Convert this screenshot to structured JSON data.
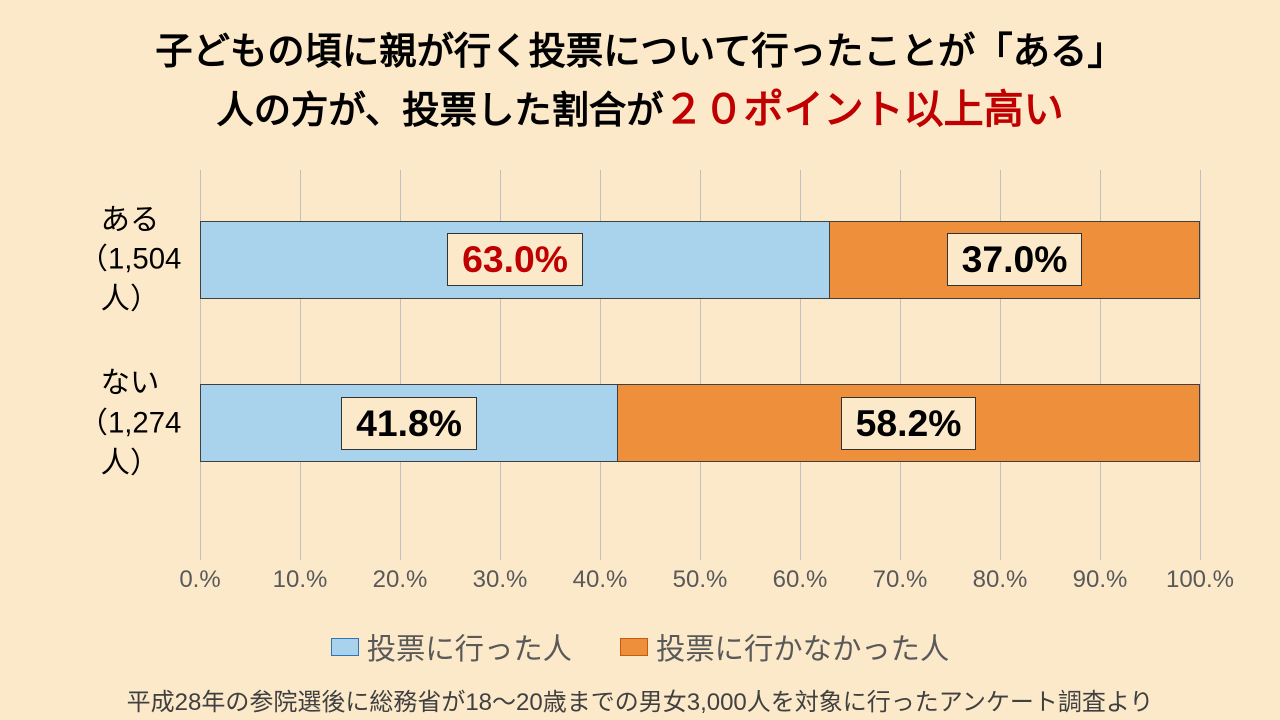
{
  "page": {
    "background_color": "#fce9ca",
    "title_line1": "子どもの頃に親が行く投票について行ったことが「ある」",
    "title_line2_prefix": "人の方が、投票した割合が",
    "title_line2_highlight": "２０ポイント以上高い",
    "title_fontsize_pt": 28,
    "title_highlight_fontsize_pt": 30,
    "title_color": "#000000",
    "title_highlight_color": "#c00000"
  },
  "chart": {
    "type": "stacked-horizontal-bar",
    "xlim": [
      0,
      100
    ],
    "xtick_step": 10,
    "xtick_labels": [
      "0.%",
      "10.%",
      "20.%",
      "30.%",
      "40.%",
      "50.%",
      "60.%",
      "70.%",
      "80.%",
      "90.%",
      "100.%"
    ],
    "xtick_fontsize_pt": 18,
    "xtick_color": "#595959",
    "grid_color": "#bfbfbf",
    "bar_border_color": "#404040",
    "y_label_fontsize_pt": 22,
    "y_label_color": "#000000",
    "bar_row_positions_pct": [
      13,
      55
    ],
    "rows": [
      {
        "label_line1": "ある",
        "label_line2": "（1,504人）",
        "segments": [
          {
            "value": 63.0,
            "label": "63.0%",
            "highlight": true
          },
          {
            "value": 37.0,
            "label": "37.0%",
            "highlight": false
          }
        ]
      },
      {
        "label_line1": "ない",
        "label_line2": "（1,274人）",
        "segments": [
          {
            "value": 41.8,
            "label": "41.8%",
            "highlight": false
          },
          {
            "value": 58.2,
            "label": "58.2%",
            "highlight": false
          }
        ]
      }
    ],
    "series": [
      {
        "name": "投票に行った人",
        "fill": "#a9d3ec",
        "border": "#2e75b6"
      },
      {
        "name": "投票に行かなかった人",
        "fill": "#ed8f3b",
        "border": "#c55a11"
      }
    ],
    "value_label_fontsize_pt": 28,
    "value_label_bg": "#fce9ca",
    "value_label_color": "#000000",
    "value_label_highlight_color": "#c00000"
  },
  "legend": {
    "fontsize_pt": 22,
    "color": "#595959"
  },
  "source": {
    "text": "平成28年の参院選後に総務省が18～20歳までの男女3,000人を対象に行ったアンケート調査より",
    "fontsize_pt": 18,
    "color": "#404040"
  }
}
